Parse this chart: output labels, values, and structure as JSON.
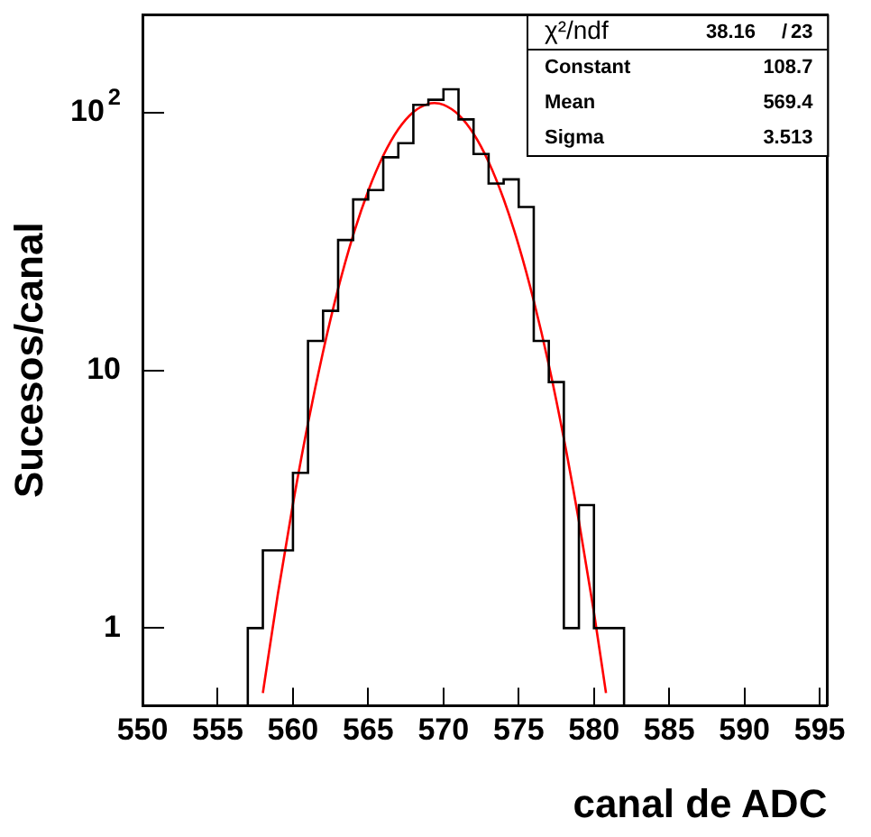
{
  "chart_data": {
    "type": "histogram",
    "xlabel": "canal de ADC",
    "ylabel": "Sucesos/canal",
    "log": "y",
    "grid": false,
    "legend": false,
    "xlim": [
      550,
      595.5
    ],
    "xticks": [
      550,
      555,
      560,
      565,
      570,
      575,
      580,
      585,
      590,
      595
    ],
    "ylim": [
      0.5,
      240
    ],
    "yticks": [
      1,
      10,
      {
        "value": 100,
        "label": "10$^{2}$"
      }
    ],
    "bins": [
      557,
      558,
      559,
      560,
      561,
      562,
      563,
      564,
      565,
      566,
      567,
      568,
      569,
      570,
      571,
      572,
      573,
      574,
      575,
      576,
      577,
      578,
      579,
      580,
      581,
      582
    ],
    "series": [
      {
        "color": "#000000",
        "values": [
          1,
          2,
          2,
          4,
          13,
          17,
          32,
          46,
          50,
          67,
          76,
          107,
          112,
          123,
          94,
          69,
          53,
          55,
          43,
          13,
          9,
          1,
          3,
          1,
          1
        ]
      },
      {
        "type": "line",
        "color": "#ff0000",
        "x": [
          558,
          559,
          560,
          561,
          562,
          563,
          564,
          565,
          566,
          567,
          568,
          569,
          569.4,
          570,
          571,
          572,
          573,
          574,
          575,
          576,
          577,
          578,
          579,
          580,
          580.8
        ],
        "values": [
          0.56,
          1.36,
          3.03,
          6.23,
          11.8,
          20.7,
          33.4,
          49.6,
          68.0,
          86.1,
          100.4,
          108.0,
          108.7,
          107.1,
          98.0,
          82.7,
          64.3,
          46.1,
          30.5,
          18.6,
          10.5,
          5.43,
          2.6,
          1.15,
          0.56
        ]
      }
    ],
    "annotations": [
      "χ²/ndf",
      "38.16",
      "/",
      "23",
      "Constant",
      "108.7",
      "Mean",
      "569.4",
      "Sigma",
      "3.513"
    ]
  }
}
